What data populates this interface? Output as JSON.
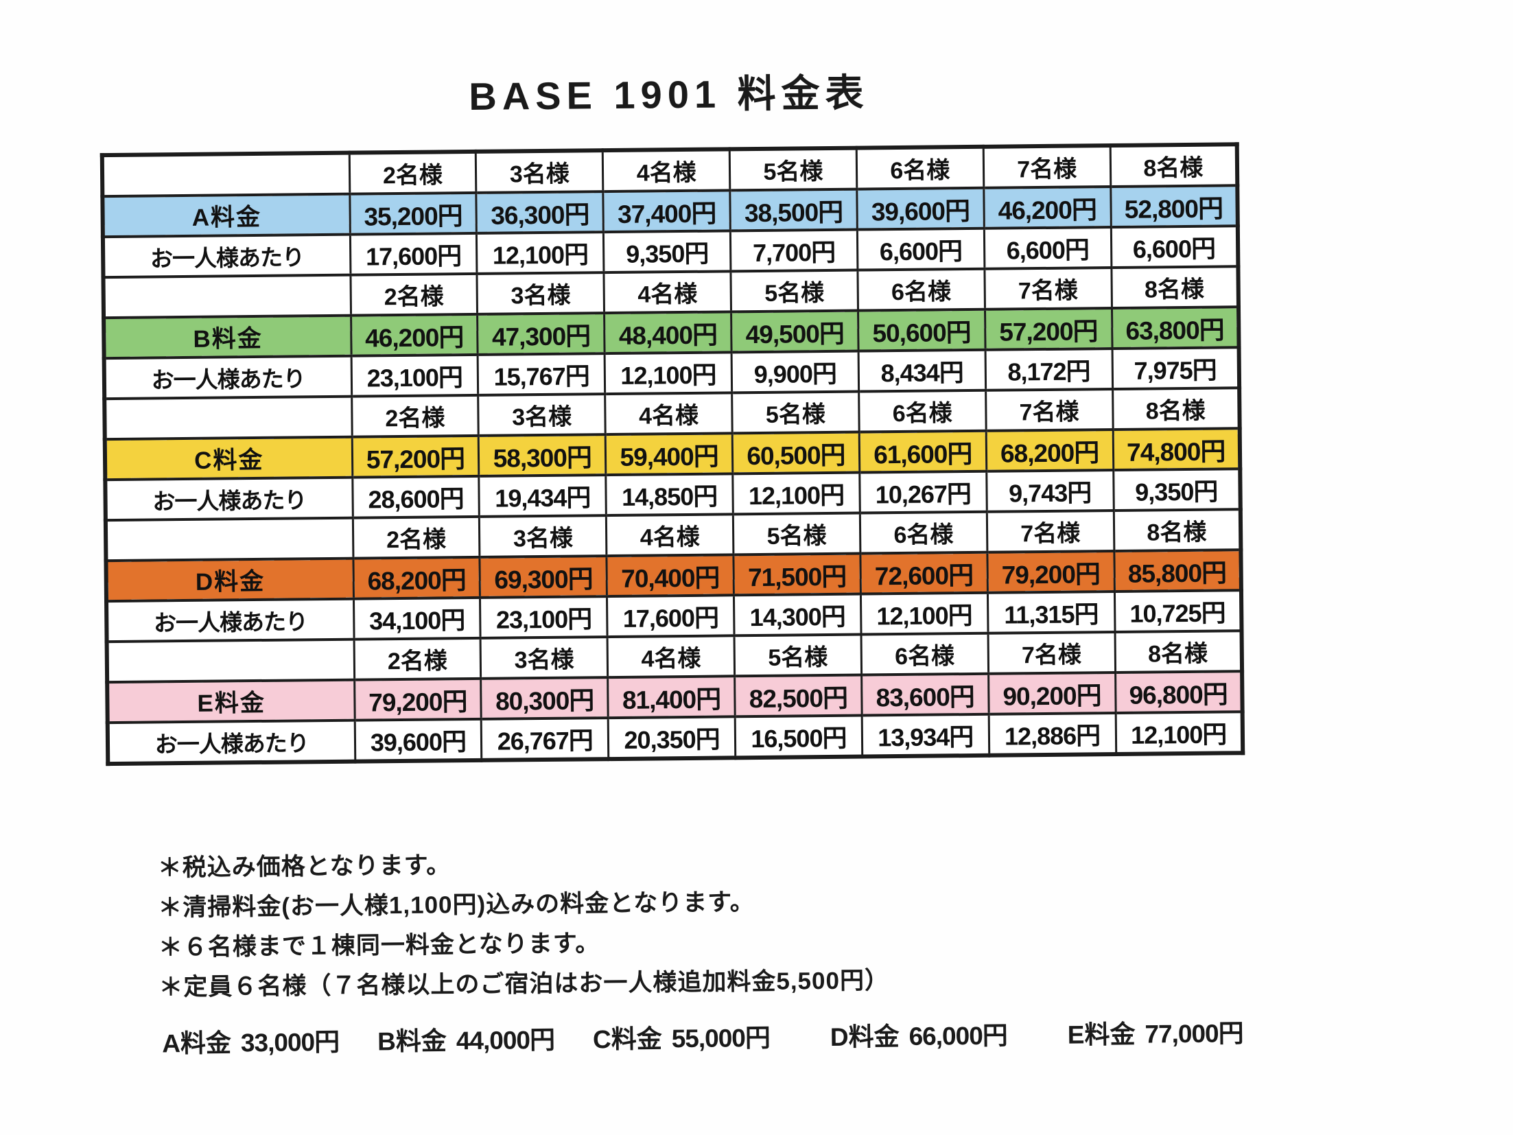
{
  "title": "BASE 1901 料金表",
  "table": {
    "header_labels": [
      "2名様",
      "3名様",
      "4名様",
      "5名様",
      "6名様",
      "7名様",
      "8名様"
    ],
    "per_person_label": "お一人様あたり",
    "sections": [
      {
        "name": "A料金",
        "color": "#a6d2ee",
        "prices": [
          "35,200円",
          "36,300円",
          "37,400円",
          "38,500円",
          "39,600円",
          "46,200円",
          "52,800円"
        ],
        "per_person": [
          "17,600円",
          "12,100円",
          "9,350円",
          "7,700円",
          "6,600円",
          "6,600円",
          "6,600円"
        ]
      },
      {
        "name": "B料金",
        "color": "#8fca78",
        "prices": [
          "46,200円",
          "47,300円",
          "48,400円",
          "49,500円",
          "50,600円",
          "57,200円",
          "63,800円"
        ],
        "per_person": [
          "23,100円",
          "15,767円",
          "12,100円",
          "9,900円",
          "8,434円",
          "8,172円",
          "7,975円"
        ]
      },
      {
        "name": "C料金",
        "color": "#f4d23e",
        "prices": [
          "57,200円",
          "58,300円",
          "59,400円",
          "60,500円",
          "61,600円",
          "68,200円",
          "74,800円"
        ],
        "per_person": [
          "28,600円",
          "19,434円",
          "14,850円",
          "12,100円",
          "10,267円",
          "9,743円",
          "9,350円"
        ]
      },
      {
        "name": "D料金",
        "color": "#e2732c",
        "prices": [
          "68,200円",
          "69,300円",
          "70,400円",
          "71,500円",
          "72,600円",
          "79,200円",
          "85,800円"
        ],
        "per_person": [
          "34,100円",
          "23,100円",
          "17,600円",
          "14,300円",
          "12,100円",
          "11,315円",
          "10,725円"
        ]
      },
      {
        "name": "E料金",
        "color": "#f7ccd7",
        "prices": [
          "79,200円",
          "80,300円",
          "81,400円",
          "82,500円",
          "83,600円",
          "90,200円",
          "96,800円"
        ],
        "per_person": [
          "39,600円",
          "26,767円",
          "20,350円",
          "16,500円",
          "13,934円",
          "12,886円",
          "12,100円"
        ]
      }
    ]
  },
  "notes": [
    "＊税込み価格となります。",
    "＊清掃料金(お一人様1,100円)込みの料金となります。",
    "＊６名様まで１棟同一料金となります。",
    "＊定員６名様（７名様以上のご宿泊はお一人様追加料金5,500円）"
  ],
  "footer_rates": [
    {
      "label": "A料金",
      "price": "33,000円"
    },
    {
      "label": "B料金",
      "price": "44,000円"
    },
    {
      "label": "C料金",
      "price": "55,000円"
    },
    {
      "label": "D料金",
      "price": "66,000円"
    },
    {
      "label": "E料金",
      "price": "77,000円"
    }
  ]
}
